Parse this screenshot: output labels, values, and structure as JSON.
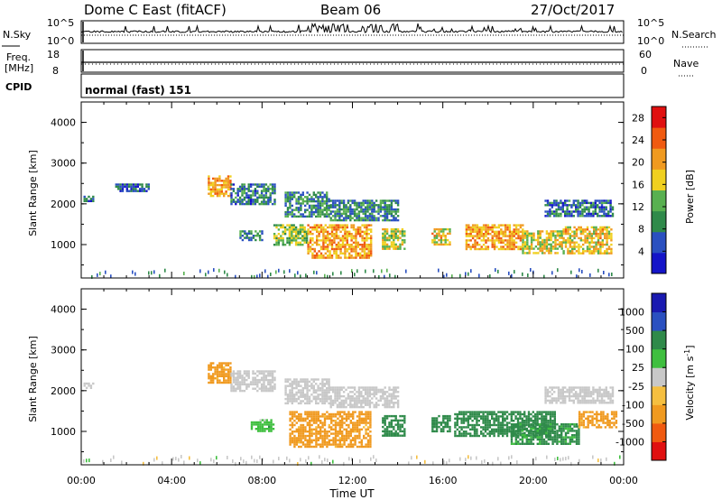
{
  "header": {
    "title": "Dome C East (fitACF)",
    "beam": "Beam 06",
    "date": "27/Oct/2017"
  },
  "strips": {
    "nsky_label": "N.Sky",
    "nsky_tick_top": "10^5",
    "nsky_tick_bottom": "10^0",
    "nsearch_label": "N.Search",
    "nsearch_tick_top": "10^5",
    "nsearch_tick_bottom": "10^0",
    "freq_label": "Freq.",
    "freq_unit": "[MHz]",
    "freq_tick_top": "18",
    "freq_tick_bottom": "8",
    "nave_label": "Nave",
    "nave_tick_top": "60",
    "nave_tick_bottom": "0",
    "cpid_label": "CPID",
    "cpid_value": "normal (fast) 151"
  },
  "x_axis": {
    "label": "Time UT",
    "ticks": [
      "00:00",
      "04:00",
      "08:00",
      "12:00",
      "16:00",
      "20:00",
      "00:00"
    ]
  },
  "colors": {
    "power_scale": [
      "#1414c8",
      "#2a50c0",
      "#2f8a4a",
      "#58b050",
      "#f0d020",
      "#f09a20",
      "#f05a10",
      "#e01010"
    ],
    "velocity_scale": [
      "#e01010",
      "#f05a10",
      "#f09a20",
      "#f5bf40",
      "#c8c8c8",
      "#3fbf3f",
      "#2f8a4a",
      "#2a50c0",
      "#1a1ab0"
    ]
  },
  "chart_data": [
    {
      "type": "heatmap",
      "panel": "power",
      "xlabel": "Time UT",
      "ylabel": "Slant Range [km]",
      "ylim": [
        180,
        4500
      ],
      "xlim": [
        0,
        24
      ],
      "y_ticks": [
        "1000",
        "2000",
        "3000",
        "4000"
      ],
      "colorbar": {
        "label": "Power [dB]",
        "ticks": [
          "4",
          "8",
          "12",
          "16",
          "20",
          "24",
          "28"
        ],
        "range": [
          0,
          30
        ]
      },
      "regions": [
        {
          "t0": 0.1,
          "t1": 0.5,
          "r0": 2050,
          "r1": 2200,
          "value": 6
        },
        {
          "t0": 1.5,
          "t1": 3.0,
          "r0": 2300,
          "r1": 2500,
          "value": 6
        },
        {
          "t0": 5.6,
          "t1": 6.6,
          "r0": 2200,
          "r1": 2700,
          "value": 20
        },
        {
          "t0": 6.6,
          "t1": 8.6,
          "r0": 2000,
          "r1": 2500,
          "value": 8
        },
        {
          "t0": 7.0,
          "t1": 8.0,
          "r0": 1100,
          "r1": 1350,
          "value": 9
        },
        {
          "t0": 8.5,
          "t1": 10.0,
          "r0": 1000,
          "r1": 1500,
          "value": 14
        },
        {
          "t0": 9.0,
          "t1": 11.0,
          "r0": 1700,
          "r1": 2300,
          "value": 9
        },
        {
          "t0": 10.0,
          "t1": 12.8,
          "r0": 700,
          "r1": 1500,
          "value": 20
        },
        {
          "t0": 11.0,
          "t1": 14.0,
          "r0": 1600,
          "r1": 2100,
          "value": 9
        },
        {
          "t0": 13.3,
          "t1": 14.3,
          "r0": 900,
          "r1": 1400,
          "value": 16
        },
        {
          "t0": 15.5,
          "t1": 16.3,
          "r0": 1000,
          "r1": 1400,
          "value": 18
        },
        {
          "t0": 17.0,
          "t1": 19.5,
          "r0": 900,
          "r1": 1500,
          "value": 20
        },
        {
          "t0": 19.5,
          "t1": 21.3,
          "r0": 800,
          "r1": 1350,
          "value": 17
        },
        {
          "t0": 21.3,
          "t1": 23.5,
          "r0": 800,
          "r1": 1450,
          "value": 18
        },
        {
          "t0": 20.5,
          "t1": 23.5,
          "r0": 1700,
          "r1": 2100,
          "value": 7
        }
      ]
    },
    {
      "type": "heatmap",
      "panel": "velocity",
      "xlabel": "Time UT",
      "ylabel": "Slant Range [km]",
      "ylim": [
        180,
        4500
      ],
      "xlim": [
        0,
        24
      ],
      "y_ticks": [
        "1000",
        "2000",
        "3000",
        "4000"
      ],
      "colorbar": {
        "label": "Velocity [m s^-1]",
        "ticks": [
          "-1000",
          "-500",
          "-100",
          "-25",
          "25",
          "100",
          "500",
          "1000"
        ]
      },
      "regions": [
        {
          "t0": 0.1,
          "t1": 0.5,
          "r0": 2050,
          "r1": 2200,
          "value": 0
        },
        {
          "t0": 5.6,
          "t1": 6.6,
          "r0": 2200,
          "r1": 2700,
          "value": -200
        },
        {
          "t0": 6.6,
          "t1": 8.6,
          "r0": 2000,
          "r1": 2500,
          "value": 0
        },
        {
          "t0": 7.5,
          "t1": 8.5,
          "r0": 1000,
          "r1": 1300,
          "value": 60
        },
        {
          "t0": 9.0,
          "t1": 11.0,
          "r0": 1700,
          "r1": 2300,
          "value": 0
        },
        {
          "t0": 9.2,
          "t1": 12.8,
          "r0": 600,
          "r1": 1500,
          "value": -200
        },
        {
          "t0": 11.0,
          "t1": 14.0,
          "r0": 1600,
          "r1": 2100,
          "value": 0
        },
        {
          "t0": 13.3,
          "t1": 14.3,
          "r0": 900,
          "r1": 1400,
          "value": 300
        },
        {
          "t0": 15.5,
          "t1": 16.3,
          "r0": 1000,
          "r1": 1400,
          "value": 300
        },
        {
          "t0": 16.5,
          "t1": 21.0,
          "r0": 900,
          "r1": 1500,
          "value": 300
        },
        {
          "t0": 19.0,
          "t1": 22.0,
          "r0": 700,
          "r1": 1200,
          "value": 150
        },
        {
          "t0": 22.0,
          "t1": 23.7,
          "r0": 1100,
          "r1": 1500,
          "value": -200
        },
        {
          "t0": 20.5,
          "t1": 23.5,
          "r0": 1700,
          "r1": 2100,
          "value": 0
        }
      ]
    }
  ]
}
